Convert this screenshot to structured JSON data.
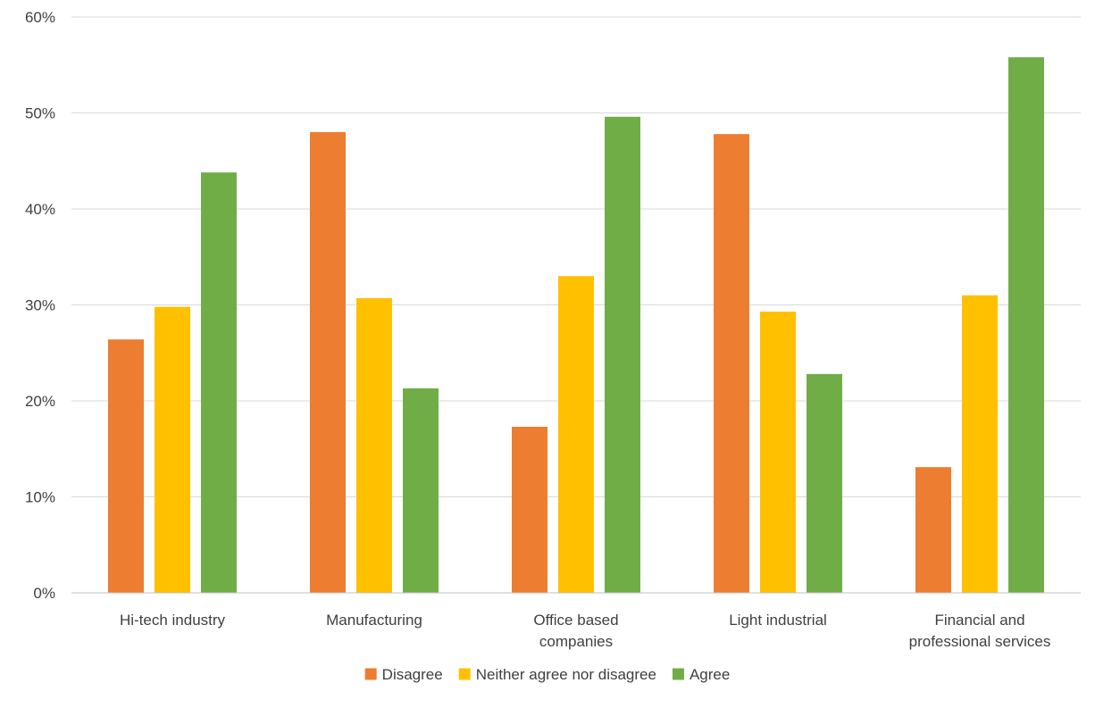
{
  "chart_data": {
    "type": "bar",
    "categories": [
      [
        "Hi-tech industry"
      ],
      [
        "Manufacturing"
      ],
      [
        "Office based",
        "companies"
      ],
      [
        "Light industrial"
      ],
      [
        "Financial and",
        "professional services"
      ]
    ],
    "series": [
      {
        "name": "Disagree",
        "color": "#ED7D31",
        "values": [
          26.4,
          48.0,
          17.3,
          47.8,
          13.1
        ]
      },
      {
        "name": "Neither agree nor disagree",
        "color": "#FFC000",
        "values": [
          29.8,
          30.7,
          33.0,
          29.3,
          31.0
        ]
      },
      {
        "name": "Agree",
        "color": "#70AD47",
        "values": [
          43.8,
          21.3,
          49.6,
          22.8,
          55.8
        ]
      }
    ],
    "y_ticks": [
      "0%",
      "10%",
      "20%",
      "30%",
      "40%",
      "50%",
      "60%"
    ],
    "ylim": [
      0,
      60
    ],
    "grid": true,
    "legend_position": "bottom"
  }
}
